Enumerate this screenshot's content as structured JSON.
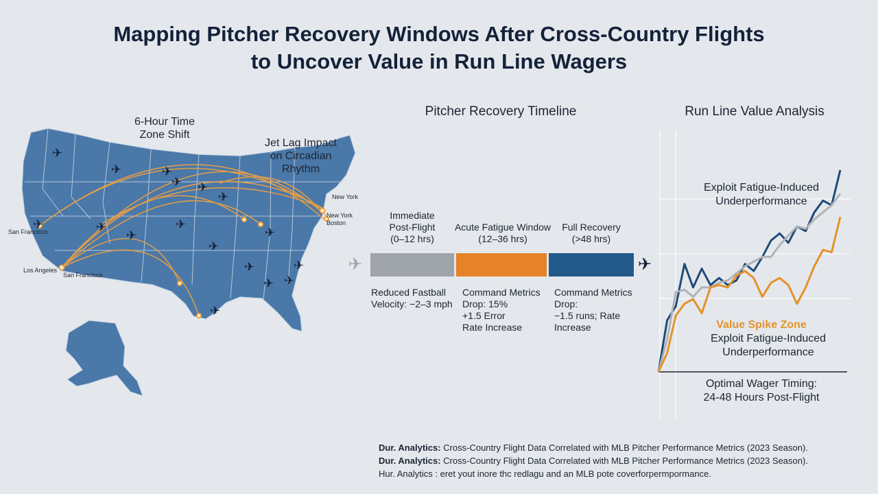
{
  "title": {
    "line1": "Mapping Pitcher Recovery Windows After Cross-Country Flights",
    "line2": "to Uncover Value in Run Line Wagers"
  },
  "map": {
    "label_time_zone": "6-Hour Time\nZone Shift",
    "label_jet_lag": "Jet Lag Impact\non Circadian\nRhythm",
    "cities": {
      "san_francisco_1": "San Francisco",
      "los_angeles": "Los Angeles",
      "san_francisco_2": "San Francisco",
      "new_york_1": "New York",
      "new_york_2": "New York",
      "boston": "Boston"
    },
    "colors": {
      "land": "#4a78a8",
      "route": "#f0a040",
      "plane": "#14213a"
    }
  },
  "timeline": {
    "title": "Pitcher Recovery Timeline",
    "phases": [
      {
        "heading": "Immediate\nPost-Flight\n(0–12 hrs)",
        "description": "Reduced Fastball\nVelocity: −2–3 mph",
        "color": "#9ea4a9"
      },
      {
        "heading": "Acute Fatigue Window\n(12–36 hrs)",
        "description": "Command Metrics\nDrop: 15%\n+1.5 Error\nRate Increase",
        "color": "#e5822a"
      },
      {
        "heading": "Full Recovery\n(>48 hrs)",
        "description": "Command Metrics\nDrop:\n−1.5 runs; Rate\nIncrease",
        "color": "#235a8c"
      }
    ]
  },
  "chart": {
    "title": "Run Line Value Analysis",
    "annotation_top": "Exploit Fatigue-Induced\nUnderperformance",
    "spike_label": "Value Spike Zone",
    "annotation_mid": "Exploit Fatigue-Induced\nUnderperformance",
    "timing_label": "Optimal Wager Timing:\n24-48 Hours Post-Flight",
    "colors": {
      "navy": "#1f4a78",
      "gray": "#b0b3b6",
      "orange": "#e5922a",
      "spike": "#e5922a"
    }
  },
  "chart_data": {
    "type": "line",
    "title": "Run Line Value Analysis",
    "xlabel": "",
    "ylabel": "",
    "x": [
      0,
      1,
      2,
      3,
      4,
      5,
      6,
      7,
      8,
      9,
      10,
      11,
      12,
      13,
      14,
      15,
      16,
      17,
      18,
      19,
      20,
      21
    ],
    "ylim": [
      0,
      100
    ],
    "grid": true,
    "series": [
      {
        "color": "#1f4a78",
        "values": [
          0,
          22,
          28,
          46,
          36,
          44,
          37,
          40,
          37,
          39,
          46,
          43,
          49,
          56,
          59,
          55,
          62,
          60,
          68,
          73,
          71,
          86
        ]
      },
      {
        "color": "#b0b3b6",
        "values": [
          0,
          14,
          34,
          35,
          32,
          36,
          36,
          38,
          39,
          42,
          45,
          47,
          49,
          49,
          54,
          58,
          62,
          61,
          65,
          68,
          71,
          76
        ]
      },
      {
        "color": "#e5922a",
        "values": [
          0,
          8,
          24,
          29,
          31,
          25,
          36,
          37,
          36,
          41,
          43,
          40,
          32,
          38,
          40,
          37,
          29,
          36,
          45,
          52,
          51,
          66
        ]
      }
    ]
  },
  "footer": {
    "line1_bold": "Dur. Analytics:",
    "line1_text": "Cross-Country Flight Data Correlated with MLB Pitcher Performance Metrics (2023 Season).",
    "line2_bold": "Dur. Analytics:",
    "line2_text": "Cross-Country Flight Data Correlated with MLB Pitcher Performance Metrics (2023 Season).",
    "line3_bold": "Hur. Analytics :",
    "line3_text": "eret yout inore thc redlagu and an MLB pote coverforpermpormance."
  }
}
